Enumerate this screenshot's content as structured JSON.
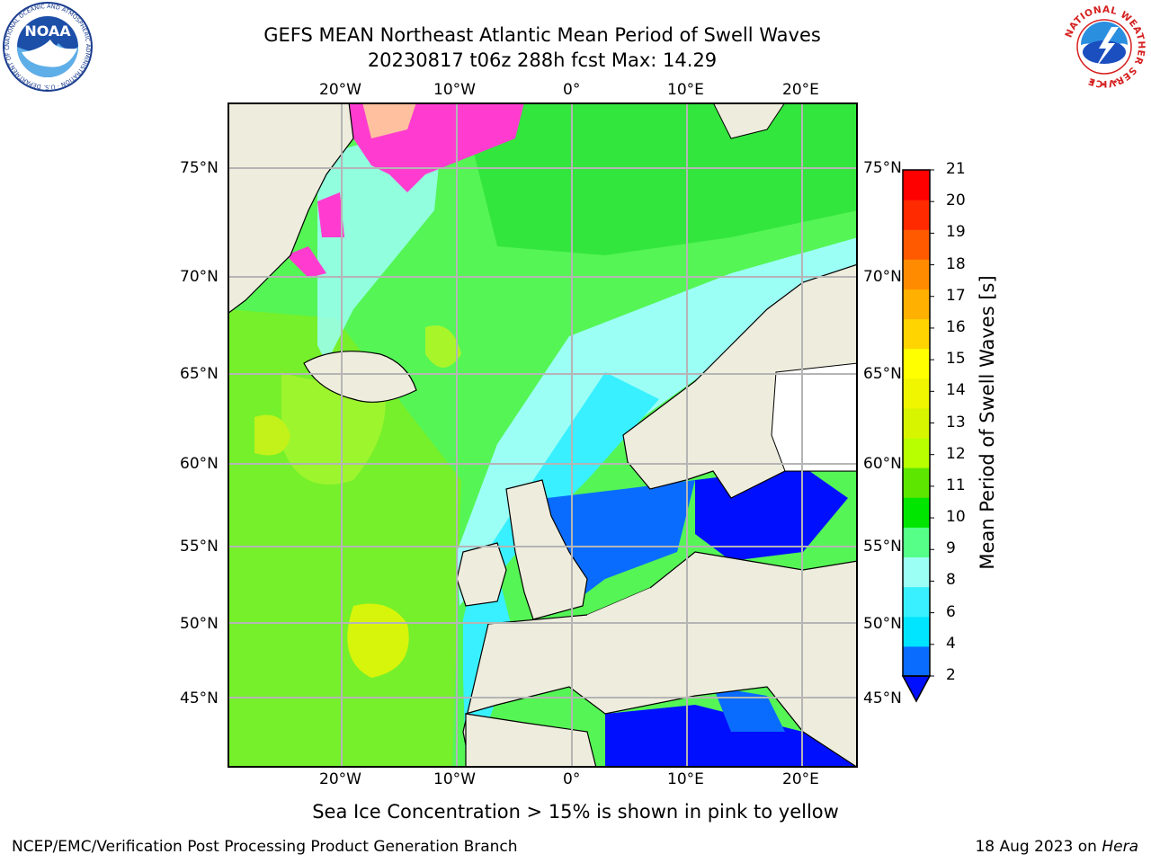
{
  "title": {
    "line1": "GEFS MEAN Northeast Atlantic Mean Period of Swell Waves",
    "line2": "20230817 t06z 288h fcst   Max: 14.29"
  },
  "map": {
    "lon_labels": [
      "20°W",
      "10°W",
      "0°",
      "10°E",
      "20°E"
    ],
    "lat_labels": [
      "75°N",
      "70°N",
      "65°N",
      "60°N",
      "55°N",
      "50°N",
      "45°N"
    ],
    "grid": true
  },
  "colorbar": {
    "title": "Mean Period of Swell Waves [s]",
    "ticks": [
      "2",
      "4",
      "6",
      "8",
      "9",
      "10",
      "11",
      "12",
      "13",
      "14",
      "15",
      "16",
      "17",
      "18",
      "19",
      "20",
      "21"
    ],
    "colors": [
      "#0a6cff",
      "#00e5ff",
      "#38f0ff",
      "#9cfff6",
      "#55ff88",
      "#00e600",
      "#5ce600",
      "#b8ff00",
      "#d8f500",
      "#f0f500",
      "#ffff00",
      "#ffd400",
      "#ffb000",
      "#ff8c00",
      "#ff5a00",
      "#ff2a00",
      "#ff0000"
    ],
    "under_color": "#0010ff"
  },
  "note": "Sea Ice Concentration > 15% is shown in pink to yellow",
  "footer": {
    "left": "NCEP/EMC/Verification Post Processing Product Generation Branch",
    "date": "18 Aug 2023 on ",
    "machine": "Hera"
  },
  "logos": {
    "noaa_text": "NOAA",
    "noaa_ring": "NATIONAL OCEANIC AND ATMOSPHERIC ADMINISTRATION · U.S. DEPARTMENT OF COMMERCE",
    "nws_ring": "NATIONAL WEATHER SERVICE"
  }
}
